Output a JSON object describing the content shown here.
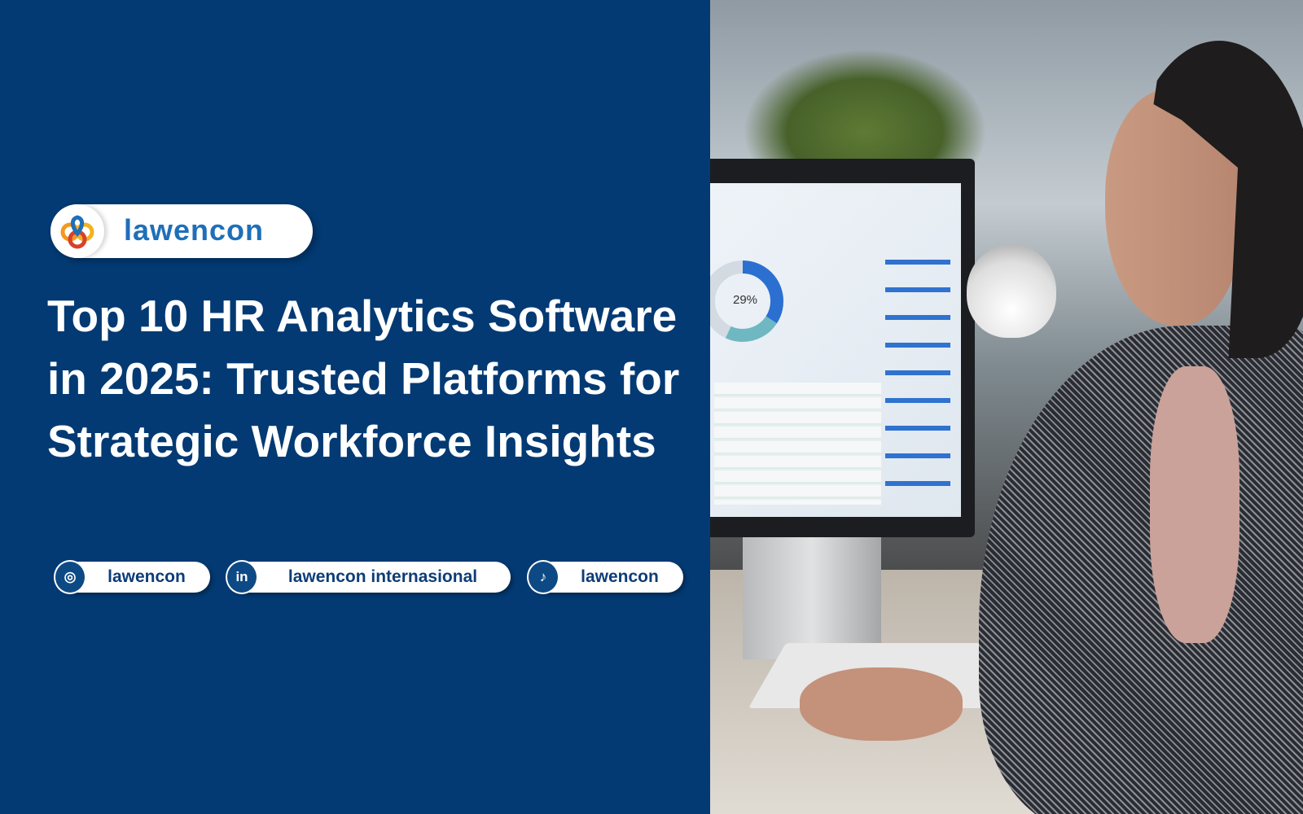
{
  "brand": {
    "name": "lawencon",
    "colors": {
      "background": "#033a73",
      "brand_text": "#1f6fb8",
      "logo_orange": "#f29a1f",
      "logo_red": "#d8412b"
    }
  },
  "title": "Top 10 HR Analytics Software in 2025: Trusted Platforms for Strategic Workforce Insights",
  "socials": [
    {
      "icon": "instagram-icon",
      "label": "lawencon"
    },
    {
      "icon": "linkedin-icon",
      "label": "lawencon internasional"
    },
    {
      "icon": "tiktok-icon",
      "label": "lawencon"
    }
  ],
  "photo": {
    "screen_donut_label": "29%"
  }
}
